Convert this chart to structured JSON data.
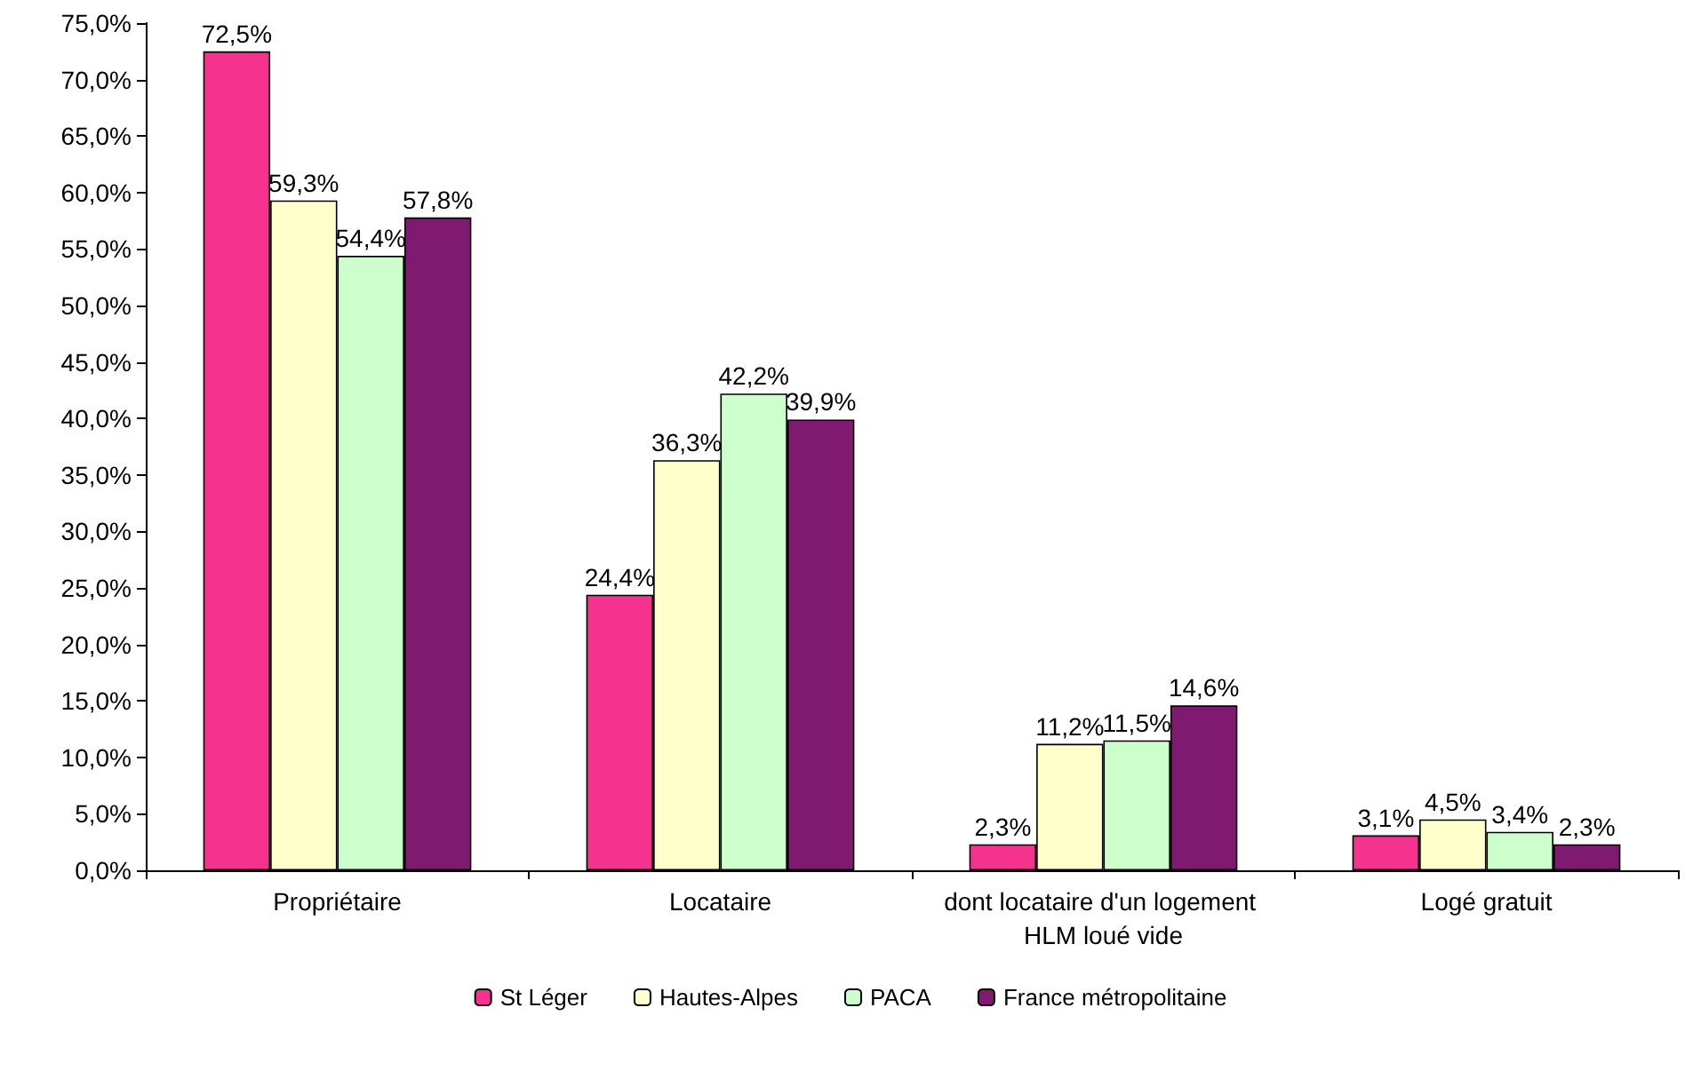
{
  "chart_data": {
    "type": "bar",
    "categories": [
      "Propriétaire",
      "Locataire",
      "dont locataire d'un logement HLM loué vide",
      "Logé gratuit"
    ],
    "series": [
      {
        "name": "St Léger",
        "color": "#f5338f",
        "values": [
          72.5,
          24.4,
          2.3,
          3.1
        ],
        "value_labels": [
          "72,5%",
          "24,4%",
          "2,3%",
          "3,1%"
        ]
      },
      {
        "name": "Hautes-Alpes",
        "color": "#ffffcc",
        "values": [
          59.3,
          36.3,
          11.2,
          4.5
        ],
        "value_labels": [
          "59,3%",
          "36,3%",
          "11,2%",
          "4,5%"
        ]
      },
      {
        "name": "PACA",
        "color": "#ccffcc",
        "values": [
          54.4,
          42.2,
          11.5,
          3.4
        ],
        "value_labels": [
          "54,4%",
          "42,2%",
          "11,5%",
          "3,4%"
        ]
      },
      {
        "name": "France métropolitaine",
        "color": "#7f1a70",
        "values": [
          57.8,
          39.9,
          14.6,
          2.3
        ],
        "value_labels": [
          "57,8%",
          "39,9%",
          "14,6%",
          "2,3%"
        ]
      }
    ],
    "ylim": [
      0,
      75
    ],
    "yticks": [
      {
        "value": 0,
        "label": "0,0%"
      },
      {
        "value": 5,
        "label": "5,0%"
      },
      {
        "value": 10,
        "label": "10,0%"
      },
      {
        "value": 15,
        "label": "15,0%"
      },
      {
        "value": 20,
        "label": "20,0%"
      },
      {
        "value": 25,
        "label": "25,0%"
      },
      {
        "value": 30,
        "label": "30,0%"
      },
      {
        "value": 35,
        "label": "35,0%"
      },
      {
        "value": 40,
        "label": "40,0%"
      },
      {
        "value": 45,
        "label": "45,0%"
      },
      {
        "value": 50,
        "label": "50,0%"
      },
      {
        "value": 55,
        "label": "55,0%"
      },
      {
        "value": 60,
        "label": "60,0%"
      },
      {
        "value": 65,
        "label": "65,0%"
      },
      {
        "value": 70,
        "label": "70,0%"
      },
      {
        "value": 75,
        "label": "75,0%"
      }
    ],
    "grid": false,
    "legend": "bottom"
  }
}
